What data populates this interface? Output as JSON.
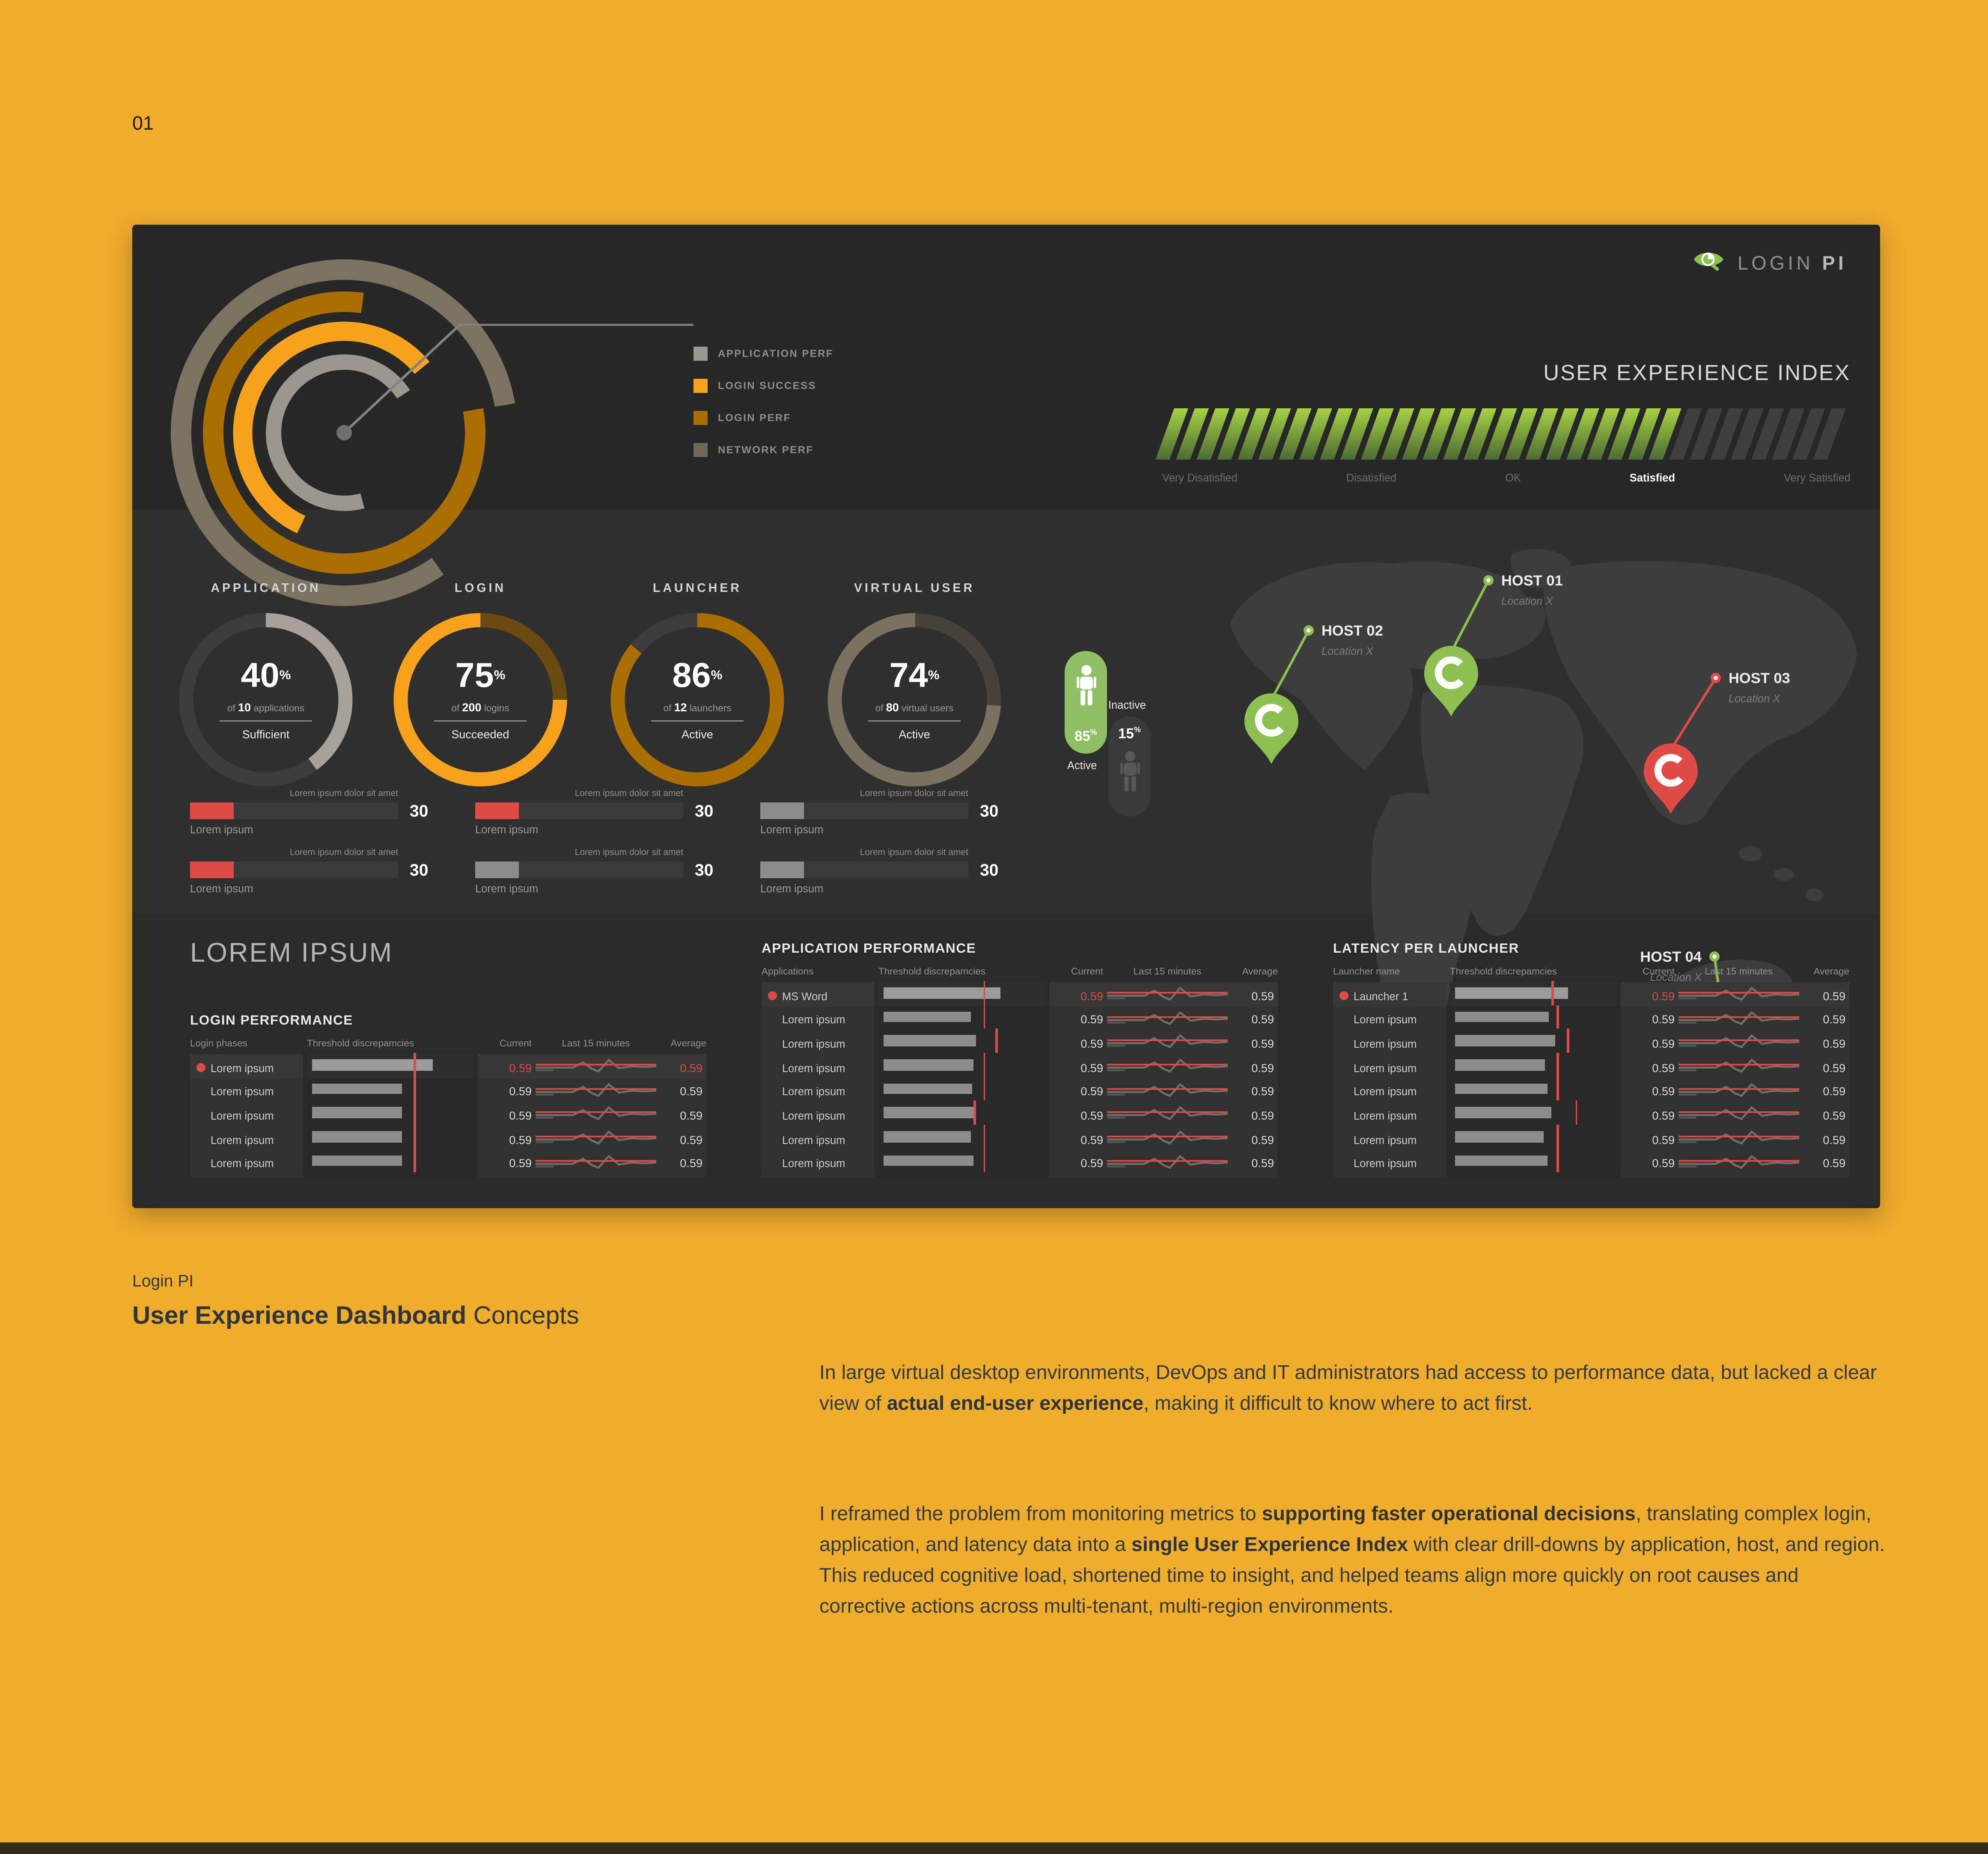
{
  "page": {
    "index_label": "01",
    "background": "#f0ac2d",
    "footer_bar_color": "#332c1d"
  },
  "brand": {
    "light": "LOGIN",
    "bold": "PI",
    "green": "#8cc152"
  },
  "legend": {
    "items": [
      {
        "label": "APPLICATION PERF",
        "color": "#9b968e"
      },
      {
        "label": "LOGIN SUCCESS",
        "color": "#f6a21c"
      },
      {
        "label": "LOGIN PERF",
        "color": "#a96d00"
      },
      {
        "label": "NETWORK PERF",
        "color": "#6f6757"
      }
    ]
  },
  "radial_gauge": {
    "needle_color": "#828282",
    "rings": [
      {
        "series": "NETWORK PERF",
        "color": "#7b7260",
        "pct": 82,
        "start": 55,
        "r": 127,
        "w": 16
      },
      {
        "series": "LOGIN PERF",
        "color": "#a96d00",
        "pct": 80,
        "start": -10,
        "r": 102,
        "w": 16
      },
      {
        "series": "LOGIN SUCCESS",
        "color": "#f6a21c",
        "pct": 57,
        "start": 115,
        "r": 79,
        "w": 15
      },
      {
        "series": "APPLICATION PERF",
        "color": "#9b968e",
        "pct": 70,
        "start": 75,
        "r": 55,
        "w": 12
      }
    ]
  },
  "uei": {
    "title": "USER EXPERIENCE INDEX",
    "stripes_total": 33,
    "stripes_filled": 25,
    "fill_top": "#a8d145",
    "fill_bottom": "#4e6b33",
    "empty_color": "#3f3f3f",
    "labels": [
      {
        "text": "Very Disatisfied",
        "active": false
      },
      {
        "text": "Disatisfied",
        "active": false
      },
      {
        "text": "OK",
        "active": false
      },
      {
        "text": "Satisfied",
        "active": true
      },
      {
        "text": "Very Satisfied",
        "active": false
      }
    ]
  },
  "donuts": [
    {
      "title": "APPLICATION",
      "value": "40",
      "of_bold": "10",
      "of_text": "applications",
      "status": "Sufficient",
      "color": "#a7a199",
      "rest": "#3d3d3d",
      "start": 270
    },
    {
      "title": "LOGIN",
      "value": "75",
      "of_bold": "200",
      "of_text": "logins",
      "status": "Succeeded",
      "color": "#f6a21c",
      "rest": "#6b4a10",
      "start": 0
    },
    {
      "title": "LAUNCHER",
      "value": "86",
      "of_bold": "12",
      "of_text": "launchers",
      "status": "Active",
      "color": "#a96d00",
      "rest": "#3d3d3d",
      "start": 270
    },
    {
      "title": "VIRTUAL USER",
      "value": "74",
      "of_bold": "80",
      "of_text": "virtual users",
      "status": "Active",
      "color": "#7a7160",
      "rest": "#46413a",
      "start": 4
    }
  ],
  "users": {
    "active_pct": "85",
    "active_label": "Active",
    "active_color": "#8fbf64",
    "inactive_pct": "15",
    "inactive_label": "Inactive",
    "inactive_color": "#3a3a3a"
  },
  "map": {
    "land_color": "#3d3d3d",
    "hosts": [
      {
        "name": "HOST 01",
        "location": "Location X",
        "color": "#8cc152",
        "tip": [
          237,
          133
        ],
        "dot": [
          266,
          27
        ],
        "side": "right"
      },
      {
        "name": "HOST 02",
        "location": "Location X",
        "color": "#8cc152",
        "tip": [
          97,
          170
        ],
        "dot": [
          126,
          66
        ],
        "side": "right"
      },
      {
        "name": "HOST 03",
        "location": "Location X",
        "color": "#df4b47",
        "tip": [
          408,
          209
        ],
        "dot": [
          443,
          103
        ],
        "side": "right"
      },
      {
        "name": "HOST 04",
        "location": "Location X",
        "color": "#8cc152",
        "tip": [
          449,
          420
        ],
        "dot": [
          442,
          320
        ],
        "side": "left"
      }
    ]
  },
  "kpis": [
    {
      "top_label": "Lorem ipsum dolor sit amet",
      "bottom_label": "Lorem ipsum",
      "value": "30",
      "fill_pct": 21,
      "fill_color": "#df4b47"
    },
    {
      "top_label": "Lorem ipsum dolor sit amet",
      "bottom_label": "Lorem ipsum",
      "value": "30",
      "fill_pct": 21,
      "fill_color": "#df4b47"
    },
    {
      "top_label": "Lorem ipsum dolor sit amet",
      "bottom_label": "Lorem ipsum",
      "value": "30",
      "fill_pct": 21,
      "fill_color": "#8d8d8d"
    },
    {
      "top_label": "Lorem ipsum dolor sit amet",
      "bottom_label": "Lorem ipsum",
      "value": "30",
      "fill_pct": 21,
      "fill_color": "#df4b47"
    },
    {
      "top_label": "Lorem ipsum dolor sit amet",
      "bottom_label": "Lorem ipsum",
      "value": "30",
      "fill_pct": 21,
      "fill_color": "#8d8d8d"
    },
    {
      "top_label": "Lorem ipsum dolor sit amet",
      "bottom_label": "Lorem ipsum",
      "value": "30",
      "fill_pct": 21,
      "fill_color": "#8d8d8d"
    }
  ],
  "overview_title": "LOREM IPSUM",
  "tables": [
    {
      "key": "login",
      "title": "LOGIN PERFORMANCE",
      "headers": [
        "Login phases",
        "Threshold discrepamcies",
        "Current",
        "Last 15 minutes",
        "Average"
      ],
      "rows": [
        {
          "name": "Lorem ipsum",
          "dot": true,
          "bar": 72,
          "threshold": 64,
          "current": "0.59",
          "average": "0.59",
          "current_red": true,
          "average_red": true
        },
        {
          "name": "Lorem ipsum",
          "dot": false,
          "bar": 54,
          "threshold": 64,
          "current": "0.59",
          "average": "0.59",
          "current_red": false,
          "average_red": false
        },
        {
          "name": "Lorem ipsum",
          "dot": false,
          "bar": 54,
          "threshold": 64,
          "current": "0.59",
          "average": "0.59",
          "current_red": false,
          "average_red": false
        },
        {
          "name": "Lorem ipsum",
          "dot": false,
          "bar": 54,
          "threshold": 64,
          "current": "0.59",
          "average": "0.59",
          "current_red": false,
          "average_red": false
        },
        {
          "name": "Lorem ipsum",
          "dot": false,
          "bar": 54,
          "threshold": 64,
          "current": "0.59",
          "average": "0.59",
          "current_red": false,
          "average_red": false
        }
      ]
    },
    {
      "key": "app",
      "title": "APPLICATION PERFORMANCE",
      "headers": [
        "Applications",
        "Threshold discrepamcies",
        "Current",
        "Last 15 minutes",
        "Average"
      ],
      "rows": [
        {
          "name": "MS Word",
          "dot": true,
          "bar": 70,
          "threshold": 63,
          "current": "0.59",
          "average": "0.59",
          "current_red": true,
          "average_red": false
        },
        {
          "name": "Lorem ipsum",
          "dot": false,
          "bar": 52,
          "threshold": 63,
          "current": "0.59",
          "average": "0.59",
          "current_red": false,
          "average_red": false
        },
        {
          "name": "Lorem ipsum",
          "dot": false,
          "bar": 55,
          "threshold": 70,
          "current": "0.59",
          "average": "0.59",
          "current_red": false,
          "average_red": false
        },
        {
          "name": "Lorem ipsum",
          "dot": false,
          "bar": 54,
          "threshold": 63,
          "current": "0.59",
          "average": "0.59",
          "current_red": false,
          "average_red": false
        },
        {
          "name": "Lorem ipsum",
          "dot": false,
          "bar": 53,
          "threshold": 63,
          "current": "0.59",
          "average": "0.59",
          "current_red": false,
          "average_red": false
        },
        {
          "name": "Lorem ipsum",
          "dot": false,
          "bar": 55,
          "threshold": 57,
          "current": "0.59",
          "average": "0.59",
          "current_red": false,
          "average_red": false
        },
        {
          "name": "Lorem ipsum",
          "dot": false,
          "bar": 52,
          "threshold": 63,
          "current": "0.59",
          "average": "0.59",
          "current_red": false,
          "average_red": false
        },
        {
          "name": "Lorem ipsum",
          "dot": false,
          "bar": 54,
          "threshold": 63,
          "current": "0.59",
          "average": "0.59",
          "current_red": false,
          "average_red": false
        }
      ]
    },
    {
      "key": "lat",
      "title": "LATENCY PER LAUNCHER",
      "headers": [
        "Launcher name",
        "Threshold discrepamcies",
        "Current",
        "Last 15 minutes",
        "Average"
      ],
      "rows": [
        {
          "name": "Launcher 1",
          "dot": true,
          "bar": 68,
          "threshold": 61,
          "current": "0.59",
          "average": "0.59",
          "current_red": true,
          "average_red": false
        },
        {
          "name": "Lorem ipsum",
          "dot": false,
          "bar": 56,
          "threshold": 64,
          "current": "0.59",
          "average": "0.59",
          "current_red": false,
          "average_red": false
        },
        {
          "name": "Lorem ipsum",
          "dot": false,
          "bar": 60,
          "threshold": 70,
          "current": "0.59",
          "average": "0.59",
          "current_red": false,
          "average_red": false
        },
        {
          "name": "Lorem ipsum",
          "dot": false,
          "bar": 54,
          "threshold": 64,
          "current": "0.59",
          "average": "0.59",
          "current_red": false,
          "average_red": false
        },
        {
          "name": "Lorem ipsum",
          "dot": false,
          "bar": 55,
          "threshold": 64,
          "current": "0.59",
          "average": "0.59",
          "current_red": false,
          "average_red": false
        },
        {
          "name": "Lorem ipsum",
          "dot": false,
          "bar": 58,
          "threshold": 75,
          "current": "0.59",
          "average": "0.59",
          "current_red": false,
          "average_red": false
        },
        {
          "name": "Lorem ipsum",
          "dot": false,
          "bar": 53,
          "threshold": 64,
          "current": "0.59",
          "average": "0.59",
          "current_red": false,
          "average_red": false
        },
        {
          "name": "Lorem ipsum",
          "dot": false,
          "bar": 55,
          "threshold": 64,
          "current": "0.59",
          "average": "0.59",
          "current_red": false,
          "average_red": false
        }
      ]
    }
  ],
  "caption": {
    "kicker": "Login PI",
    "title_bold": "User Experience Dashboard",
    "title_rest": " Concepts",
    "p1_parts": [
      {
        "t": "In large virtual desktop environments, DevOps and IT administrators had access to performance data, but lacked a clear view of ",
        "b": false
      },
      {
        "t": "actual end-user experience",
        "b": true
      },
      {
        "t": ", making it difficult to know where to act first.",
        "b": false
      }
    ],
    "p2_parts": [
      {
        "t": "I reframed the problem from monitoring metrics to ",
        "b": false
      },
      {
        "t": "supporting faster operational decisions",
        "b": true
      },
      {
        "t": ", translating complex login, application, and latency data into a ",
        "b": false
      },
      {
        "t": "single User Experience Index",
        "b": true
      },
      {
        "t": " with clear drill-downs by application, host, and region. This reduced cognitive load, shortened time to insight, and helped teams align more quickly on root causes and corrective actions across multi-tenant, multi-region environments.",
        "b": false
      }
    ]
  }
}
